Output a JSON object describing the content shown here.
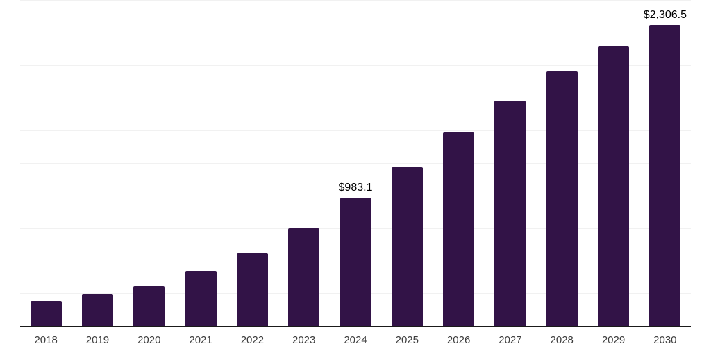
{
  "chart_data": {
    "type": "bar",
    "title": "",
    "xlabel": "",
    "ylabel": "",
    "categories": [
      "2018",
      "2019",
      "2020",
      "2021",
      "2022",
      "2023",
      "2024",
      "2025",
      "2026",
      "2027",
      "2028",
      "2029",
      "2030"
    ],
    "values": [
      192,
      245,
      303,
      421,
      560,
      748,
      983.1,
      1218,
      1485,
      1727,
      1952,
      2145,
      2306.5
    ],
    "data_labels": {
      "2024": "$983.1",
      "2030": "$2,306.5"
    },
    "ylim": [
      0,
      2500
    ],
    "grid_step": 250,
    "grid": true,
    "legend": false,
    "y_axis_labels_visible": false,
    "bar_color": "#321347",
    "gridline_color": "#f1f1f1",
    "axis_line_color": "#1a1a1a",
    "tick_label_color": "#3d3d3d",
    "value_label_color": "#000000",
    "background_color": "#ffffff"
  }
}
